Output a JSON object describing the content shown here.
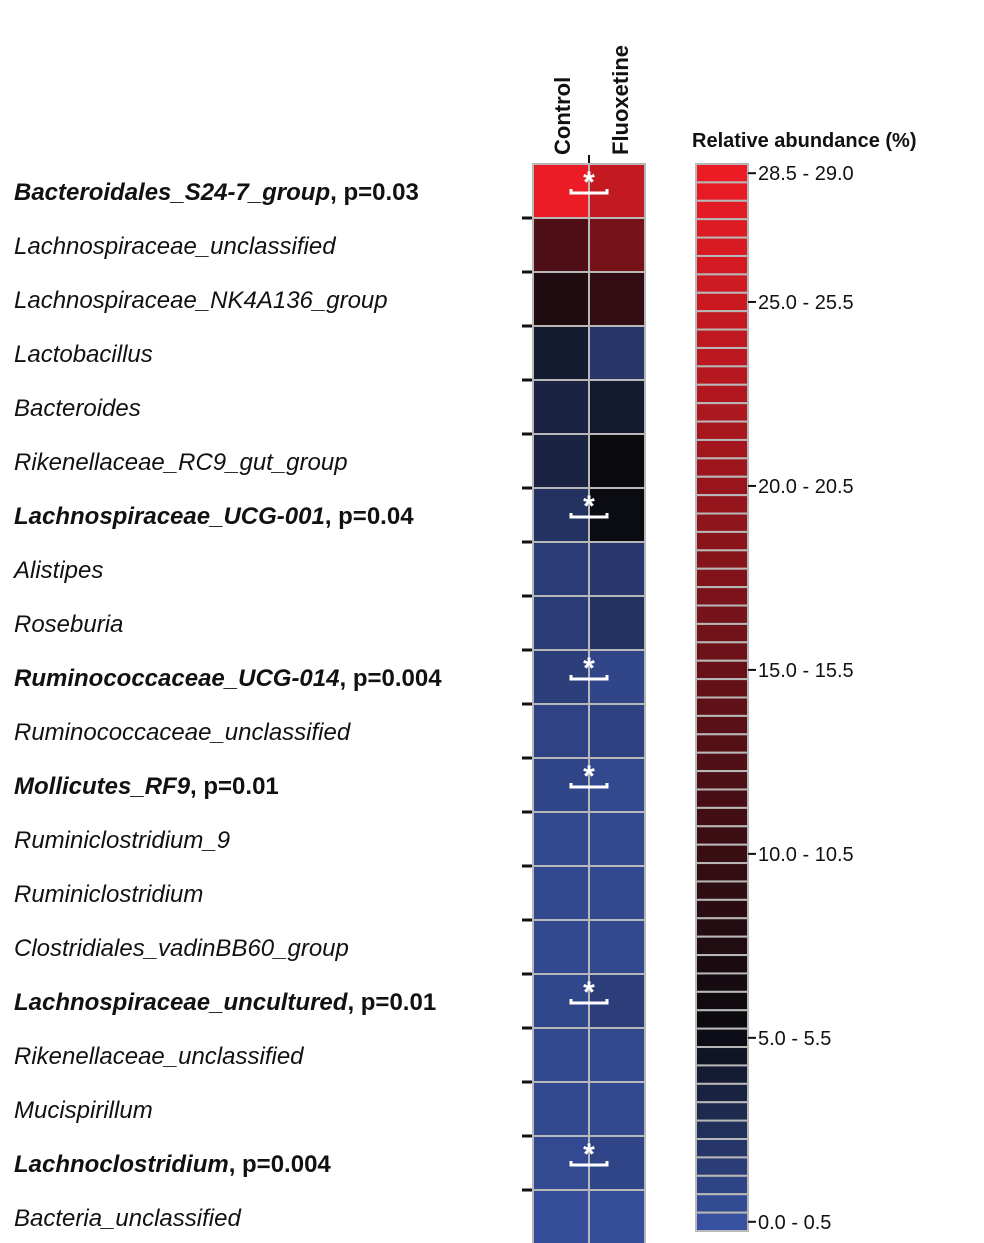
{
  "chart_data": {
    "type": "heatmap",
    "columns": [
      "Control",
      "Fluoxetine"
    ],
    "rows": [
      {
        "name": "Bacteroidales_S24-7_group",
        "p": ", p=0.03",
        "significant": true,
        "values": [
          28.7,
          24.6
        ]
      },
      {
        "name": "Lachnospiraceae_unclassified",
        "p": "",
        "significant": false,
        "values": [
          12.4,
          16.6
        ]
      },
      {
        "name": "Lachnospiraceae_NK4A136_group",
        "p": "",
        "significant": false,
        "values": [
          7.6,
          9.6
        ]
      },
      {
        "name": "Lactobacillus",
        "p": "",
        "significant": false,
        "values": [
          4.3,
          2.3
        ]
      },
      {
        "name": "Bacteroides",
        "p": "",
        "significant": false,
        "values": [
          3.7,
          4.3
        ]
      },
      {
        "name": "Rikenellaceae_RC9_gut_group",
        "p": "",
        "significant": false,
        "values": [
          3.7,
          5.6
        ]
      },
      {
        "name": "Lachnospiraceae_UCG-001",
        "p": ", p=0.04",
        "significant": true,
        "values": [
          2.6,
          5.4
        ]
      },
      {
        "name": "Alistipes",
        "p": "",
        "significant": false,
        "values": [
          1.8,
          2.1
        ]
      },
      {
        "name": "Roseburia",
        "p": "",
        "significant": false,
        "values": [
          1.8,
          2.6
        ]
      },
      {
        "name": "Ruminococcaceae_UCG-014",
        "p": ", p=0.004",
        "significant": true,
        "values": [
          1.6,
          1.1
        ]
      },
      {
        "name": "Ruminococcaceae_unclassified",
        "p": "",
        "significant": false,
        "values": [
          1.3,
          1.4
        ]
      },
      {
        "name": "Mollicutes_RF9",
        "p": ", p=0.01",
        "significant": true,
        "values": [
          1.2,
          0.9
        ]
      },
      {
        "name": "Ruminiclostridium_9",
        "p": "",
        "significant": false,
        "values": [
          0.9,
          0.9
        ]
      },
      {
        "name": "Ruminiclostridium",
        "p": "",
        "significant": false,
        "values": [
          0.9,
          0.9
        ]
      },
      {
        "name": "Clostridiales_vadinBB60_group",
        "p": "",
        "significant": false,
        "values": [
          0.9,
          0.9
        ]
      },
      {
        "name": "Lachnospiraceae_uncultured",
        "p": ", p=0.01",
        "significant": true,
        "values": [
          1.0,
          1.7
        ]
      },
      {
        "name": "Rikenellaceae_unclassified",
        "p": "",
        "significant": false,
        "values": [
          0.9,
          0.9
        ]
      },
      {
        "name": "Mucispirillum",
        "p": "",
        "significant": false,
        "values": [
          0.9,
          0.9
        ]
      },
      {
        "name": "Lachnoclostridium",
        "p": ", p=0.004",
        "significant": true,
        "values": [
          0.8,
          1.2
        ]
      },
      {
        "name": "Bacteria_unclassified",
        "p": "",
        "significant": false,
        "values": [
          0.5,
          0.5
        ]
      }
    ],
    "significance_marker": "*",
    "legend": {
      "title": "Relative abundance (%)",
      "range": [
        0,
        29
      ],
      "step": 0.5,
      "tick_labels": [
        "28.5 - 29.0",
        "25.0 - 25.5",
        "20.0 - 20.5",
        "15.0 - 15.5",
        "10.0 - 10.5",
        "5.0 - 5.5",
        "0.0 - 0.5"
      ]
    },
    "colors": {
      "low": "#3a55a8",
      "mid": "#0a0a0f",
      "high": "#ee1c25",
      "cell_border": "#b8b8b8"
    }
  }
}
